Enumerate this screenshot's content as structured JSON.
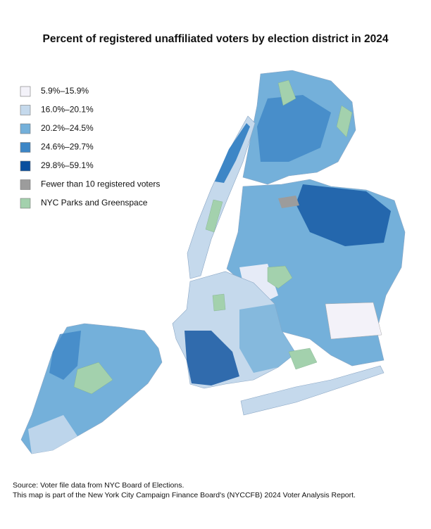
{
  "title": "Percent of registered unaffiliated voters by election district in 2024",
  "legend": [
    {
      "label": "5.9%–15.9%",
      "color": "#f3f2f9"
    },
    {
      "label": "16.0%–20.1%",
      "color": "#c5d9ec"
    },
    {
      "label": "20.2%–24.5%",
      "color": "#74b0da"
    },
    {
      "label": "24.6%–29.7%",
      "color": "#3d86c6"
    },
    {
      "label": "29.8%–59.1%",
      "color": "#0a4f9e"
    },
    {
      "label": "Fewer than 10 registered voters",
      "color": "#9c9c9c"
    },
    {
      "label": "NYC Parks and Greenspace",
      "color": "#a3d1ad"
    }
  ],
  "source": [
    "Source: Voter file data from NYC Board of Elections.",
    "This map is part of the New York City Campaign Finance Board's (NYCCFB) 2024 Voter Analysis Report."
  ]
}
